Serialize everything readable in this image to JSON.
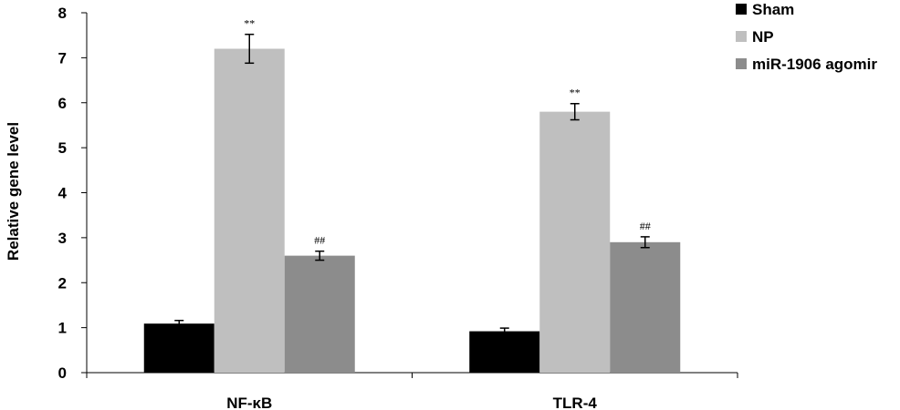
{
  "chart_data": {
    "type": "bar",
    "ylabel": "Relative gene level",
    "ylim": [
      0,
      8
    ],
    "yticks": [
      0,
      1,
      2,
      3,
      4,
      5,
      6,
      7,
      8
    ],
    "categories": [
      "NF-κB",
      "TLR-4"
    ],
    "series": [
      {
        "name": "Sham",
        "color": "#000000",
        "values": [
          1.09,
          0.92
        ],
        "errors": [
          0.07,
          0.07
        ],
        "annotations": [
          "",
          ""
        ]
      },
      {
        "name": "NP",
        "color": "#bfbfbf",
        "values": [
          7.2,
          5.8
        ],
        "errors": [
          0.32,
          0.18
        ],
        "annotations": [
          "**",
          "**"
        ]
      },
      {
        "name": "miR-1906 agomir",
        "color": "#8c8c8c",
        "values": [
          2.6,
          2.9
        ],
        "errors": [
          0.1,
          0.12
        ],
        "annotations": [
          "##",
          "##"
        ]
      }
    ],
    "legend_position": "top-right",
    "grid": false
  }
}
